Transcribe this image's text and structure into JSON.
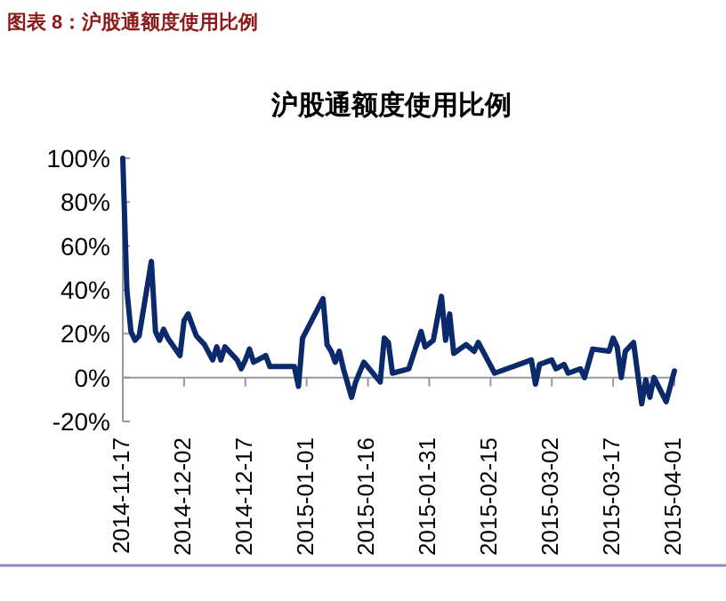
{
  "chart_data": {
    "type": "line",
    "title": "沪股通额度使用比例",
    "annotations": [
      "图表 8：沪股通额度使用比例"
    ],
    "x": [
      "2014-11-17",
      "2014-11-18",
      "2014-11-19",
      "2014-11-20",
      "2014-11-21",
      "2014-11-24",
      "2014-11-25",
      "2014-11-26",
      "2014-11-27",
      "2014-11-28",
      "2014-12-01",
      "2014-12-02",
      "2014-12-03",
      "2014-12-05",
      "2014-12-07",
      "2014-12-09",
      "2014-12-10",
      "2014-12-11",
      "2014-12-12",
      "2014-12-15",
      "2014-12-16",
      "2014-12-17",
      "2014-12-18",
      "2014-12-19",
      "2014-12-22",
      "2014-12-23",
      "2014-12-29",
      "2014-12-30",
      "2014-12-31",
      "2015-01-05",
      "2015-01-06",
      "2015-01-07",
      "2015-01-08",
      "2015-01-09",
      "2015-01-10",
      "2015-01-12",
      "2015-01-13",
      "2015-01-15",
      "2015-01-19",
      "2015-01-20",
      "2015-01-21",
      "2015-01-22",
      "2015-01-26",
      "2015-01-29",
      "2015-01-30",
      "2015-02-01",
      "2015-02-03",
      "2015-02-04",
      "2015-02-05",
      "2015-02-06",
      "2015-02-09",
      "2015-02-11",
      "2015-02-12",
      "2015-02-16",
      "2015-02-25",
      "2015-02-26",
      "2015-02-27",
      "2015-03-02",
      "2015-03-03",
      "2015-03-05",
      "2015-03-06",
      "2015-03-09",
      "2015-03-10",
      "2015-03-12",
      "2015-03-16",
      "2015-03-17",
      "2015-03-18",
      "2015-03-19",
      "2015-03-20",
      "2015-03-22",
      "2015-03-24",
      "2015-03-25",
      "2015-03-26",
      "2015-03-27",
      "2015-03-30",
      "2015-04-01"
    ],
    "series": [
      {
        "color": "#0b2a6b",
        "values": [
          100,
          40,
          21,
          17,
          19,
          53,
          21,
          17,
          22,
          18,
          10,
          26,
          29,
          19,
          15,
          8,
          14,
          8,
          14,
          8,
          4,
          8,
          13,
          7,
          10,
          5,
          5,
          -4,
          18,
          36,
          15,
          12,
          7,
          12,
          4,
          -9,
          -2,
          7,
          -2,
          18,
          16,
          2,
          4,
          21,
          14,
          17,
          37,
          17,
          29,
          11,
          15,
          12,
          16,
          2,
          8,
          -3,
          6,
          8,
          4,
          6,
          2,
          4,
          0,
          13,
          12,
          18,
          14,
          0,
          12,
          16,
          -12,
          -1,
          -9,
          0,
          -11,
          3
        ]
      }
    ],
    "xlim": [
      "2014-11-17",
      "2015-04-01"
    ],
    "xticks": [
      "2014-11-17",
      "2014-12-02",
      "2014-12-17",
      "2015-01-01",
      "2015-01-16",
      "2015-01-31",
      "2015-02-15",
      "2015-03-02",
      "2015-03-17",
      "2015-04-01"
    ],
    "ylim": [
      -20,
      100
    ],
    "yticks": [
      {
        "value": -20,
        "label": "-20%"
      },
      {
        "value": 0,
        "label": "0%"
      },
      {
        "value": 20,
        "label": "20%"
      },
      {
        "value": 40,
        "label": "40%"
      },
      {
        "value": 60,
        "label": "60%"
      },
      {
        "value": 80,
        "label": "80%"
      },
      {
        "value": 100,
        "label": "100%"
      }
    ],
    "grid": false,
    "marker": "none",
    "line_style": "solid"
  }
}
